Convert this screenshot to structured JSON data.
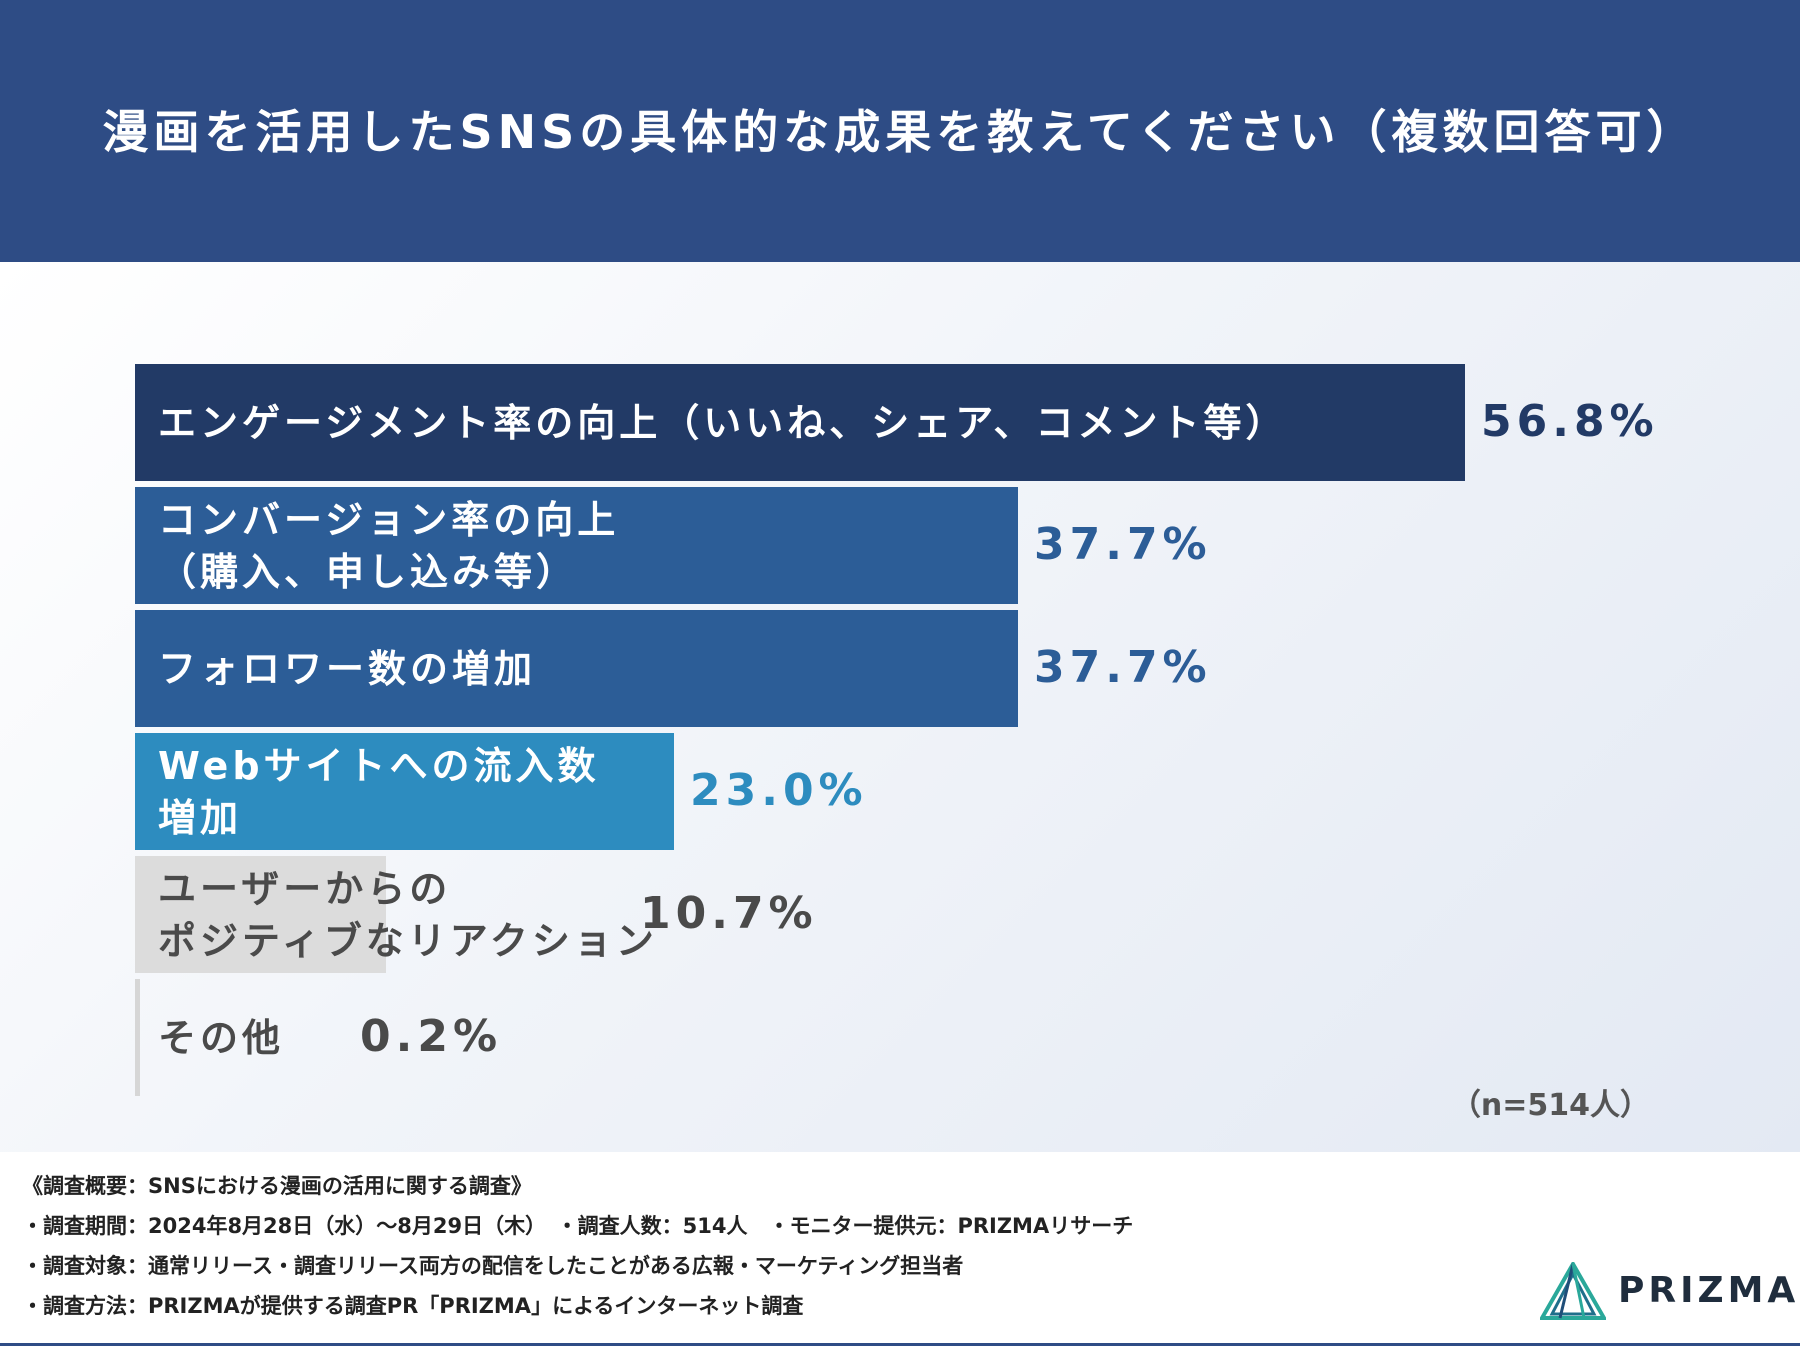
{
  "header": {
    "title": "漫画を活用したSNSの具体的な成果を教えてください（複数回答可）"
  },
  "chart_data": {
    "type": "bar",
    "orientation": "horizontal",
    "title": "漫画を活用したSNSの具体的な成果を教えてください（複数回答可）",
    "categories": [
      "エンゲージメント率の向上（いいね、シェア、コメント等）",
      "コンバージョン率の向上\n（購入、申し込み等）",
      "フォロワー数の増加",
      "Webサイトへの流入数\n増加",
      "ユーザーからの\nポジティブなリアクション",
      "その他"
    ],
    "values": [
      56.8,
      37.7,
      37.7,
      23.0,
      10.7,
      0.2
    ],
    "value_labels": [
      "56.8%",
      "37.7%",
      "37.7%",
      "23.0%",
      "10.7%",
      "0.2%"
    ],
    "xlim": [
      0,
      56.8
    ],
    "bar_colors": [
      "#223a66",
      "#2c5d97",
      "#2c5d97",
      "#2d8cbf",
      "#dcdcdc",
      "#d6d6d6"
    ],
    "label_colors": [
      "#ffffff",
      "#ffffff",
      "#ffffff",
      "#ffffff",
      "#4a4a4a",
      "#4a4a4a"
    ],
    "value_colors": [
      "#223a66",
      "#2c5d97",
      "#2c5d97",
      "#2d8cbf",
      "#4a4a4a",
      "#4a4a4a"
    ],
    "sample_note": "（n=514人）"
  },
  "footer": {
    "survey_title": "《調査概要：SNSにおける漫画の活用に関する調査》",
    "line1": "・調査期間：2024年8月28日（水）～8月29日（木）　・調査人数：514人　・モニター提供元：PRIZMAリサーチ",
    "line2": "・調査対象：通常リリース・調査リリース両方の配信をしたことがある広報・マーケティング担当者",
    "line3": "・調査方法：PRIZMAが提供する調査PR「PRIZMA」によるインターネット調査"
  },
  "logo": {
    "text": "PRIZMA",
    "icon": "prizm-triangle-icon",
    "colors": [
      "#2aa89a",
      "#1f4e79"
    ]
  }
}
